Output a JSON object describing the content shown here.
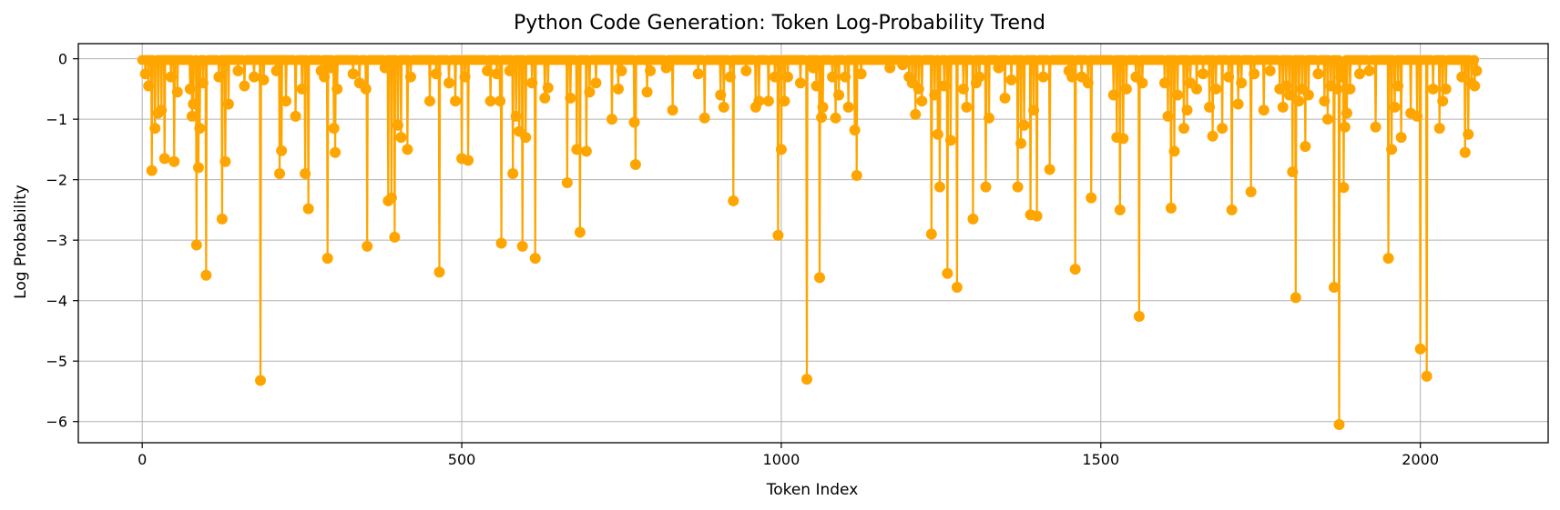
{
  "chart_data": {
    "type": "line",
    "title": "Python Code Generation: Token Log-Probability Trend",
    "xlabel": "Token Index",
    "ylabel": "Log Probability",
    "xlim": [
      -100,
      2200
    ],
    "ylim": [
      -6.35,
      0.25
    ],
    "xticks": [
      {
        "value": 0,
        "label": "0"
      },
      {
        "value": 500,
        "label": "500"
      },
      {
        "value": 1000,
        "label": "1000"
      },
      {
        "value": 1500,
        "label": "1500"
      },
      {
        "value": 2000,
        "label": "2000"
      }
    ],
    "yticks": [
      {
        "value": 0,
        "label": "0"
      },
      {
        "value": -1,
        "label": "−1"
      },
      {
        "value": -2,
        "label": "−2"
      },
      {
        "value": -3,
        "label": "−3"
      },
      {
        "value": -4,
        "label": "−4"
      },
      {
        "value": -5,
        "label": "−5"
      },
      {
        "value": -6,
        "label": "−6"
      }
    ],
    "grid": true,
    "color": "#FFA500",
    "marker": "circle",
    "n_tokens": 2090,
    "baseline": -0.02,
    "spikes": [
      [
        5,
        -0.25
      ],
      [
        10,
        -0.45
      ],
      [
        15,
        -1.85
      ],
      [
        20,
        -1.15
      ],
      [
        25,
        -0.9
      ],
      [
        30,
        -0.85
      ],
      [
        35,
        -1.65
      ],
      [
        45,
        -0.3
      ],
      [
        50,
        -1.7
      ],
      [
        55,
        -0.55
      ],
      [
        75,
        -0.5
      ],
      [
        78,
        -0.95
      ],
      [
        80,
        -0.75
      ],
      [
        85,
        -3.08
      ],
      [
        88,
        -1.8
      ],
      [
        90,
        -1.15
      ],
      [
        95,
        -0.4
      ],
      [
        100,
        -3.58
      ],
      [
        120,
        -0.3
      ],
      [
        125,
        -2.65
      ],
      [
        130,
        -1.7
      ],
      [
        135,
        -0.75
      ],
      [
        150,
        -0.2
      ],
      [
        160,
        -0.45
      ],
      [
        175,
        -0.3
      ],
      [
        185,
        -5.32
      ],
      [
        190,
        -0.35
      ],
      [
        210,
        -0.2
      ],
      [
        215,
        -1.9
      ],
      [
        218,
        -1.52
      ],
      [
        225,
        -0.7
      ],
      [
        240,
        -0.95
      ],
      [
        250,
        -0.5
      ],
      [
        255,
        -1.9
      ],
      [
        260,
        -2.48
      ],
      [
        280,
        -0.2
      ],
      [
        285,
        -0.3
      ],
      [
        290,
        -3.3
      ],
      [
        295,
        -0.15
      ],
      [
        300,
        -1.15
      ],
      [
        302,
        -1.55
      ],
      [
        305,
        -0.5
      ],
      [
        330,
        -0.25
      ],
      [
        340,
        -0.4
      ],
      [
        350,
        -0.5
      ],
      [
        352,
        -3.1
      ],
      [
        380,
        -0.15
      ],
      [
        385,
        -2.35
      ],
      [
        390,
        -2.3
      ],
      [
        395,
        -2.95
      ],
      [
        400,
        -1.1
      ],
      [
        405,
        -1.3
      ],
      [
        415,
        -1.5
      ],
      [
        420,
        -0.3
      ],
      [
        450,
        -0.7
      ],
      [
        460,
        -0.25
      ],
      [
        465,
        -3.53
      ],
      [
        480,
        -0.4
      ],
      [
        490,
        -0.7
      ],
      [
        500,
        -1.65
      ],
      [
        505,
        -0.3
      ],
      [
        510,
        -1.68
      ],
      [
        540,
        -0.2
      ],
      [
        545,
        -0.7
      ],
      [
        555,
        -0.25
      ],
      [
        560,
        -0.7
      ],
      [
        562,
        -3.05
      ],
      [
        575,
        -0.2
      ],
      [
        580,
        -1.9
      ],
      [
        585,
        -0.95
      ],
      [
        590,
        -1.2
      ],
      [
        595,
        -3.1
      ],
      [
        600,
        -1.3
      ],
      [
        610,
        -0.4
      ],
      [
        615,
        -3.3
      ],
      [
        630,
        -0.65
      ],
      [
        635,
        -0.48
      ],
      [
        665,
        -2.05
      ],
      [
        670,
        -0.65
      ],
      [
        680,
        -1.5
      ],
      [
        685,
        -2.87
      ],
      [
        695,
        -1.53
      ],
      [
        700,
        -0.55
      ],
      [
        710,
        -0.4
      ],
      [
        735,
        -1.0
      ],
      [
        745,
        -0.5
      ],
      [
        750,
        -0.2
      ],
      [
        770,
        -1.05
      ],
      [
        772,
        -1.75
      ],
      [
        790,
        -0.55
      ],
      [
        795,
        -0.2
      ],
      [
        820,
        -0.15
      ],
      [
        830,
        -0.85
      ],
      [
        870,
        -0.25
      ],
      [
        880,
        -0.98
      ],
      [
        905,
        -0.6
      ],
      [
        910,
        -0.8
      ],
      [
        920,
        -0.3
      ],
      [
        925,
        -2.35
      ],
      [
        945,
        -0.2
      ],
      [
        960,
        -0.8
      ],
      [
        965,
        -0.7
      ],
      [
        980,
        -0.7
      ],
      [
        990,
        -0.3
      ],
      [
        995,
        -2.92
      ],
      [
        1000,
        -1.5
      ],
      [
        1005,
        -0.7
      ],
      [
        1010,
        -0.3
      ],
      [
        1030,
        -0.4
      ],
      [
        1040,
        -5.3
      ],
      [
        1050,
        -0.15
      ],
      [
        1055,
        -0.45
      ],
      [
        1060,
        -3.62
      ],
      [
        1063,
        -0.97
      ],
      [
        1065,
        -0.8
      ],
      [
        1080,
        -0.3
      ],
      [
        1085,
        -0.98
      ],
      [
        1090,
        -0.6
      ],
      [
        1100,
        -0.3
      ],
      [
        1105,
        -0.8
      ],
      [
        1115,
        -1.18
      ],
      [
        1118,
        -1.93
      ],
      [
        1125,
        -0.25
      ],
      [
        1170,
        -0.15
      ],
      [
        1190,
        -0.1
      ],
      [
        1200,
        -0.3
      ],
      [
        1205,
        -0.4
      ],
      [
        1210,
        -0.92
      ],
      [
        1215,
        -0.5
      ],
      [
        1220,
        -0.7
      ],
      [
        1235,
        -2.9
      ],
      [
        1240,
        -0.6
      ],
      [
        1245,
        -1.25
      ],
      [
        1248,
        -2.12
      ],
      [
        1255,
        -0.45
      ],
      [
        1260,
        -3.55
      ],
      [
        1265,
        -1.35
      ],
      [
        1275,
        -3.78
      ],
      [
        1285,
        -0.5
      ],
      [
        1290,
        -0.8
      ],
      [
        1300,
        -2.65
      ],
      [
        1305,
        -0.4
      ],
      [
        1310,
        -0.3
      ],
      [
        1320,
        -2.12
      ],
      [
        1325,
        -0.98
      ],
      [
        1340,
        -0.15
      ],
      [
        1350,
        -0.65
      ],
      [
        1360,
        -0.35
      ],
      [
        1370,
        -2.12
      ],
      [
        1375,
        -1.4
      ],
      [
        1380,
        -1.1
      ],
      [
        1390,
        -2.58
      ],
      [
        1395,
        -0.85
      ],
      [
        1400,
        -2.6
      ],
      [
        1410,
        -0.3
      ],
      [
        1420,
        -1.83
      ],
      [
        1450,
        -0.2
      ],
      [
        1455,
        -0.3
      ],
      [
        1460,
        -3.48
      ],
      [
        1470,
        -0.3
      ],
      [
        1480,
        -0.4
      ],
      [
        1485,
        -2.3
      ],
      [
        1520,
        -0.6
      ],
      [
        1525,
        -1.3
      ],
      [
        1530,
        -2.5
      ],
      [
        1535,
        -1.32
      ],
      [
        1540,
        -0.5
      ],
      [
        1555,
        -0.3
      ],
      [
        1560,
        -4.26
      ],
      [
        1565,
        -0.4
      ],
      [
        1600,
        -0.4
      ],
      [
        1605,
        -0.95
      ],
      [
        1610,
        -2.47
      ],
      [
        1615,
        -1.53
      ],
      [
        1620,
        -0.6
      ],
      [
        1630,
        -1.15
      ],
      [
        1635,
        -0.85
      ],
      [
        1640,
        -0.4
      ],
      [
        1650,
        -0.5
      ],
      [
        1660,
        -0.25
      ],
      [
        1670,
        -0.8
      ],
      [
        1675,
        -1.28
      ],
      [
        1680,
        -0.5
      ],
      [
        1690,
        -1.15
      ],
      [
        1700,
        -0.3
      ],
      [
        1705,
        -2.5
      ],
      [
        1715,
        -0.75
      ],
      [
        1720,
        -0.4
      ],
      [
        1735,
        -2.2
      ],
      [
        1740,
        -0.25
      ],
      [
        1755,
        -0.85
      ],
      [
        1765,
        -0.2
      ],
      [
        1780,
        -0.5
      ],
      [
        1785,
        -0.8
      ],
      [
        1790,
        -0.45
      ],
      [
        1795,
        -0.6
      ],
      [
        1800,
        -1.87
      ],
      [
        1805,
        -3.95
      ],
      [
        1810,
        -0.7
      ],
      [
        1815,
        -0.5
      ],
      [
        1820,
        -1.45
      ],
      [
        1825,
        -0.6
      ],
      [
        1840,
        -0.25
      ],
      [
        1850,
        -0.7
      ],
      [
        1855,
        -1.0
      ],
      [
        1860,
        -0.45
      ],
      [
        1865,
        -3.78
      ],
      [
        1870,
        -0.5
      ],
      [
        1873,
        -6.05
      ],
      [
        1876,
        -0.3
      ],
      [
        1880,
        -2.13
      ],
      [
        1882,
        -1.13
      ],
      [
        1885,
        -0.9
      ],
      [
        1890,
        -0.5
      ],
      [
        1905,
        -0.25
      ],
      [
        1920,
        -0.2
      ],
      [
        1930,
        -1.13
      ],
      [
        1950,
        -3.3
      ],
      [
        1955,
        -1.5
      ],
      [
        1960,
        -0.8
      ],
      [
        1965,
        -0.45
      ],
      [
        1970,
        -1.3
      ],
      [
        1985,
        -0.9
      ],
      [
        1995,
        -0.95
      ],
      [
        2000,
        -4.8
      ],
      [
        2010,
        -5.25
      ],
      [
        2020,
        -0.5
      ],
      [
        2030,
        -1.15
      ],
      [
        2035,
        -0.7
      ],
      [
        2040,
        -0.5
      ],
      [
        2065,
        -0.3
      ],
      [
        2070,
        -1.55
      ],
      [
        2075,
        -1.25
      ],
      [
        2080,
        -0.4
      ],
      [
        2085,
        -0.45
      ],
      [
        2088,
        -0.2
      ]
    ]
  }
}
